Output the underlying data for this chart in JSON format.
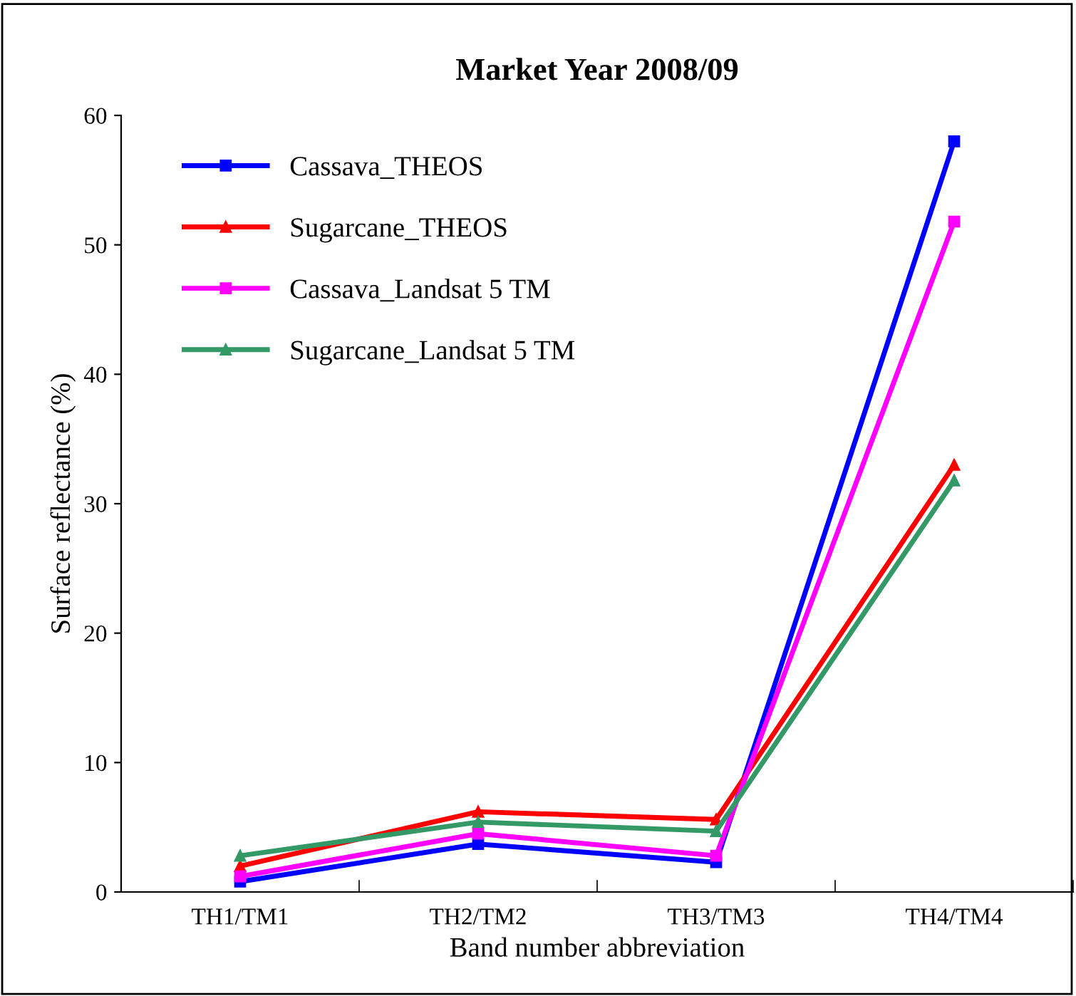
{
  "chart_data": {
    "type": "line",
    "title": "Market Year 2008/09",
    "xlabel": "Band number abbreviation",
    "ylabel": "Surface reflectance (%)",
    "categories": [
      "TH1/TM1",
      "TH2/TM2",
      "TH3/TM3",
      "TH4/TM4"
    ],
    "series": [
      {
        "name": "Cassava_THEOS",
        "color": "#0000ff",
        "marker": "square",
        "values": [
          0.8,
          3.7,
          2.3,
          58
        ]
      },
      {
        "name": "Sugarcane_THEOS",
        "color": "#ff0000",
        "marker": "triangle",
        "values": [
          2.0,
          6.2,
          5.6,
          33
        ]
      },
      {
        "name": "Cassava_Landsat 5 TM",
        "color": "#ff00ff",
        "marker": "square",
        "values": [
          1.2,
          4.5,
          2.8,
          51.8
        ]
      },
      {
        "name": "Sugarcane_Landsat 5 TM",
        "color": "#339966",
        "marker": "triangle",
        "values": [
          2.8,
          5.4,
          4.7,
          31.8
        ]
      }
    ],
    "ylim": [
      0,
      60
    ],
    "yticks": [
      0,
      10,
      20,
      30,
      40,
      50,
      60
    ],
    "grid": false,
    "legend": "top left",
    "line_style": "solid"
  }
}
